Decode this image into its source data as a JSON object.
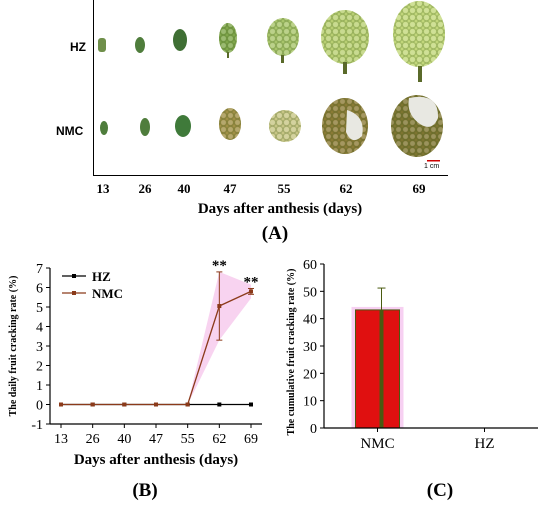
{
  "panel_a": {
    "row_labels": [
      "HZ",
      "NMC"
    ],
    "days": [
      "13",
      "26",
      "40",
      "47",
      "55",
      "62",
      "69"
    ],
    "xlabel": "Days after anthesis (days)",
    "scale_bar": "1 cm",
    "panel_label": "(A)",
    "colors": {
      "young": "#4f7d3c",
      "medium": "#7fa64a",
      "mature": "#b9cf72",
      "cracked": "#8a7a35",
      "aril": "#e8e8e2"
    }
  },
  "panel_b": {
    "panel_label": "(B)"
  },
  "panel_c": {
    "panel_label": "(C)"
  },
  "chart_data": [
    {
      "type": "line",
      "ylabel": "The daily fruit cracking rate (%)",
      "xlabel": "Days after anthesis (days)",
      "categories": [
        "13",
        "26",
        "40",
        "47",
        "55",
        "62",
        "69"
      ],
      "ylim": [
        -1,
        7
      ],
      "yticks": [
        "-1",
        "0",
        "1",
        "2",
        "3",
        "4",
        "5",
        "6",
        "7"
      ],
      "legend": "top-left",
      "series": [
        {
          "name": "HZ",
          "color": "#000000",
          "values": [
            0,
            0,
            0,
            0,
            0,
            0,
            0
          ],
          "errors": [
            0,
            0,
            0,
            0,
            0,
            0,
            0
          ]
        },
        {
          "name": "NMC",
          "color": "#8b3a1a",
          "values": [
            0,
            0,
            0,
            0,
            0,
            5.05,
            5.8
          ],
          "errors": [
            0,
            0,
            0,
            0,
            0,
            1.75,
            0.15
          ]
        }
      ],
      "annotations": [
        {
          "category": "62",
          "text": "**"
        },
        {
          "category": "69",
          "text": "**"
        }
      ]
    },
    {
      "type": "bar",
      "ylabel": "The cumulative fruit cracking rate (%)",
      "categories": [
        "NMC",
        "HZ"
      ],
      "values": [
        43.2,
        0
      ],
      "errors": [
        8,
        0
      ],
      "ylim": [
        0,
        60
      ],
      "yticks": [
        "0",
        "10",
        "20",
        "30",
        "40",
        "50",
        "60"
      ],
      "bar_color": "#e01010",
      "bar_edge": "#4a5a10",
      "highlight": "#f7d0f2"
    }
  ]
}
